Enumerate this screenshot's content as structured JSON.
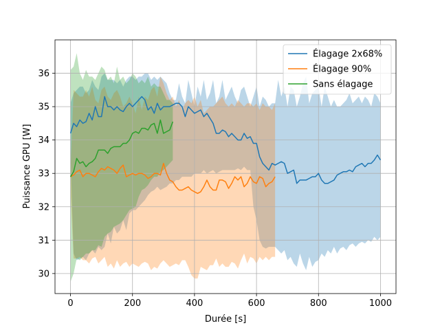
{
  "chart_data": {
    "type": "line",
    "title": "",
    "xlabel": "Durée [s]",
    "ylabel": "Puissance GPU [W]",
    "xlim": [
      -50,
      1050
    ],
    "ylim": [
      29.4,
      37.0
    ],
    "xticks": [
      0,
      200,
      400,
      600,
      800,
      1000
    ],
    "xtick_labels": [
      "0",
      "200",
      "400",
      "600",
      "800",
      "1000"
    ],
    "yticks": [
      30,
      31,
      32,
      33,
      34,
      35,
      36
    ],
    "ytick_labels": [
      "30",
      "31",
      "32",
      "33",
      "34",
      "35",
      "36"
    ],
    "grid": true,
    "legend_position": "top-right",
    "series": [
      {
        "name": "Élagage 2x68%",
        "color": "#1f77b4",
        "x": [
          0,
          10,
          20,
          30,
          40,
          50,
          60,
          70,
          80,
          90,
          100,
          110,
          120,
          130,
          140,
          150,
          160,
          170,
          180,
          190,
          200,
          210,
          220,
          230,
          240,
          250,
          260,
          270,
          280,
          290,
          300,
          310,
          320,
          330,
          340,
          350,
          360,
          370,
          380,
          390,
          400,
          410,
          420,
          430,
          440,
          450,
          460,
          470,
          480,
          490,
          500,
          510,
          520,
          530,
          540,
          550,
          560,
          570,
          580,
          590,
          600,
          610,
          620,
          630,
          640,
          650,
          660,
          670,
          680,
          690,
          700,
          710,
          720,
          730,
          740,
          750,
          760,
          770,
          780,
          790,
          800,
          810,
          820,
          830,
          840,
          850,
          860,
          870,
          880,
          890,
          900,
          910,
          920,
          930,
          940,
          950,
          960,
          970,
          980,
          990,
          1000
        ],
        "y": [
          34.2,
          34.5,
          34.4,
          34.6,
          34.5,
          34.55,
          34.8,
          34.6,
          35.0,
          34.7,
          34.7,
          35.3,
          35.0,
          35.0,
          34.9,
          35.0,
          34.9,
          34.85,
          35.0,
          35.1,
          35.0,
          35.1,
          35.2,
          35.3,
          35.2,
          34.9,
          35.0,
          34.8,
          35.1,
          34.9,
          35.0,
          35.0,
          35.0,
          35.05,
          35.1,
          35.1,
          35.0,
          34.7,
          35.0,
          34.9,
          34.8,
          34.85,
          34.9,
          34.7,
          34.8,
          34.65,
          34.5,
          34.2,
          34.2,
          34.3,
          34.25,
          34.1,
          34.2,
          34.1,
          34.0,
          34.0,
          34.2,
          34.05,
          34.1,
          33.9,
          33.9,
          33.5,
          33.3,
          33.2,
          33.1,
          33.3,
          33.25,
          33.3,
          33.35,
          33.3,
          33.0,
          33.05,
          33.1,
          32.7,
          32.8,
          32.8,
          32.8,
          32.85,
          32.9,
          32.9,
          33.0,
          32.8,
          32.7,
          32.7,
          32.75,
          32.8,
          32.95,
          33.0,
          33.05,
          33.05,
          33.1,
          33.05,
          33.2,
          33.25,
          33.3,
          33.2,
          33.3,
          33.3,
          33.4,
          33.55,
          33.4
        ],
        "band_low": [
          33.6,
          30.6,
          30.4,
          30.45,
          30.5,
          30.4,
          30.6,
          30.7,
          30.6,
          30.8,
          30.7,
          30.8,
          31.2,
          30.9,
          31.4,
          31.2,
          31.3,
          31.6,
          31.3,
          31.8,
          31.9,
          31.9,
          32.0,
          32.1,
          32.2,
          32.35,
          32.45,
          32.5,
          32.6,
          32.5,
          32.55,
          32.6,
          32.7,
          32.7,
          32.8,
          32.8,
          32.9,
          32.9,
          32.9,
          32.9,
          33.0,
          33.0,
          33.0,
          33.1,
          33.0,
          33.05,
          33.1,
          33.0,
          33.05,
          33.1,
          33.1,
          33.1,
          33.1,
          33.1,
          33.15,
          33.1,
          33.2,
          33.1,
          33.1,
          32.0,
          31.6,
          31.0,
          30.8,
          30.75,
          30.8,
          30.8,
          30.8,
          30.7,
          30.6,
          30.7,
          30.4,
          30.5,
          30.3,
          30.2,
          30.6,
          30.3,
          30.1,
          30.5,
          30.2,
          30.35,
          30.4,
          30.6,
          30.5,
          30.7,
          30.6,
          30.8,
          30.6,
          30.75,
          30.8,
          30.7,
          30.85,
          30.9,
          30.8,
          30.9,
          30.95,
          30.9,
          31.0,
          30.95,
          31.1,
          31.0,
          31.1
        ],
        "band_high": [
          35.1,
          35.4,
          35.5,
          35.6,
          35.6,
          35.4,
          35.5,
          35.8,
          35.6,
          35.5,
          35.9,
          36.0,
          35.8,
          35.8,
          35.8,
          35.7,
          35.8,
          35.6,
          35.8,
          35.9,
          35.9,
          35.8,
          35.9,
          35.9,
          36.0,
          36.0,
          35.8,
          35.9,
          35.8,
          35.9,
          35.8,
          35.7,
          35.4,
          35.2,
          35.2,
          35.7,
          35.3,
          35.1,
          35.8,
          35.4,
          35.0,
          35.6,
          35.3,
          35.8,
          35.2,
          35.4,
          35.8,
          35.1,
          35.3,
          35.8,
          35.2,
          35.4,
          35.6,
          35.3,
          35.1,
          35.5,
          35.6,
          35.3,
          35.0,
          35.3,
          35.6,
          35.0,
          35.3,
          35.2,
          35.0,
          35.1,
          35.1,
          35.8,
          35.3,
          35.6,
          35.0,
          35.6,
          35.5,
          35.0,
          35.3,
          35.7,
          35.9,
          35.1,
          35.4,
          35.5,
          35.6,
          35.0,
          35.6,
          35.3,
          35.0,
          35.2,
          35.0,
          35.0,
          35.1,
          35.2,
          35.4,
          35.1,
          35.2,
          35.3,
          35.1,
          35.3,
          35.2,
          35.0,
          35.4,
          35.3,
          35.1
        ]
      },
      {
        "name": "Élagage 90%",
        "color": "#ff7f0e",
        "x": [
          0,
          10,
          20,
          30,
          40,
          50,
          60,
          70,
          80,
          90,
          100,
          110,
          120,
          130,
          140,
          150,
          160,
          170,
          180,
          190,
          200,
          210,
          220,
          230,
          240,
          250,
          260,
          270,
          280,
          290,
          300,
          310,
          320,
          330,
          340,
          350,
          360,
          370,
          380,
          390,
          400,
          410,
          420,
          430,
          440,
          450,
          460,
          470,
          480,
          490,
          500,
          510,
          520,
          530,
          540,
          550,
          560,
          570,
          580,
          590,
          600,
          610,
          620,
          630,
          640,
          650,
          660
        ],
        "y": [
          32.9,
          32.95,
          33.05,
          33.1,
          32.9,
          33.0,
          33.0,
          32.95,
          32.9,
          33.05,
          33.15,
          33.1,
          33.2,
          33.15,
          33.1,
          33.0,
          33.15,
          33.25,
          32.9,
          32.95,
          33.0,
          32.95,
          33.0,
          33.0,
          32.95,
          32.85,
          32.9,
          33.0,
          33.0,
          32.95,
          33.3,
          33.0,
          32.8,
          32.75,
          32.6,
          32.5,
          32.5,
          32.55,
          32.6,
          32.5,
          32.45,
          32.4,
          32.45,
          32.6,
          32.8,
          32.6,
          32.5,
          32.5,
          32.8,
          32.8,
          32.75,
          32.55,
          32.7,
          32.9,
          32.8,
          32.9,
          32.6,
          32.7,
          32.9,
          32.75,
          32.7,
          32.9,
          32.85,
          32.6,
          32.7,
          32.75,
          32.9
        ],
        "band_low": [
          32.5,
          30.45,
          30.45,
          30.5,
          30.4,
          30.4,
          30.3,
          30.45,
          30.5,
          30.3,
          30.4,
          30.5,
          30.2,
          30.3,
          30.15,
          30.4,
          30.2,
          30.3,
          30.35,
          30.2,
          30.3,
          30.25,
          30.2,
          30.3,
          30.35,
          30.3,
          30.1,
          30.2,
          30.15,
          30.3,
          30.4,
          30.3,
          30.2,
          30.25,
          30.3,
          30.25,
          30.4,
          30.4,
          30.2,
          29.95,
          29.85,
          29.85,
          30.2,
          30.15,
          30.1,
          30.25,
          30.25,
          30.45,
          30.2,
          30.3,
          30.2,
          30.2,
          30.35,
          30.3,
          30.15,
          30.4,
          30.6,
          30.3,
          30.5,
          30.45,
          30.3,
          30.5,
          30.4,
          30.5,
          30.4,
          30.5,
          30.5
        ],
        "band_high": [
          33.1,
          35.5,
          35.4,
          35.3,
          35.3,
          35.5,
          35.3,
          35.6,
          35.2,
          35.1,
          35.5,
          35.6,
          35.3,
          35.2,
          35.4,
          35.5,
          35.3,
          35.0,
          35.1,
          35.3,
          35.1,
          34.8,
          35.3,
          34.9,
          35.3,
          35.2,
          35.5,
          35.6,
          35.3,
          35.9,
          35.7,
          35.4,
          35.2,
          35.3,
          35.0,
          35.2,
          34.9,
          35.1,
          35.2,
          35.1,
          35.3,
          35.0,
          35.2,
          34.8,
          34.9,
          35.0,
          35.0,
          35.1,
          35.2,
          35.3,
          35.1,
          35.0,
          35.1,
          35.0,
          35.2,
          35.1,
          35.0,
          35.1,
          35.1,
          35.0,
          35.1,
          34.9,
          35.1,
          35.0,
          35.0,
          34.9,
          35.1
        ]
      },
      {
        "name": "Sans élagage",
        "color": "#2ca02c",
        "x": [
          0,
          10,
          20,
          30,
          40,
          50,
          60,
          70,
          80,
          90,
          100,
          110,
          120,
          130,
          140,
          150,
          160,
          170,
          180,
          190,
          200,
          210,
          220,
          230,
          240,
          250,
          260,
          270,
          280,
          290,
          300,
          310,
          320,
          330
        ],
        "y": [
          32.9,
          33.05,
          33.45,
          33.3,
          33.35,
          33.2,
          33.3,
          33.35,
          33.45,
          33.7,
          33.7,
          33.7,
          33.6,
          33.75,
          33.8,
          33.8,
          33.8,
          33.9,
          33.9,
          34.0,
          34.2,
          34.25,
          34.2,
          34.35,
          34.35,
          34.3,
          34.45,
          34.5,
          34.2,
          34.6,
          34.2,
          34.25,
          34.3,
          34.55
        ],
        "band_low": [
          29.75,
          30.0,
          30.45,
          30.4,
          30.5,
          30.6,
          30.6,
          30.7,
          30.7,
          30.85,
          30.8,
          31.1,
          31.2,
          31.25,
          31.4,
          31.45,
          31.5,
          31.6,
          31.75,
          31.9,
          31.95,
          32.0,
          32.3,
          32.5,
          32.55,
          32.65,
          32.8,
          32.9,
          32.9,
          33.05,
          33.1,
          33.2,
          33.3,
          33.4
        ],
        "band_high": [
          36.1,
          36.2,
          36.6,
          36.0,
          35.8,
          36.1,
          35.9,
          35.9,
          35.8,
          36.0,
          36.2,
          36.1,
          35.8,
          35.9,
          35.7,
          36.2,
          35.8,
          35.9,
          35.7,
          35.8,
          36.0,
          35.9,
          35.7,
          35.8,
          35.7,
          35.9,
          35.6,
          35.7,
          35.6,
          35.6,
          35.4,
          35.2,
          35.2,
          35.1
        ]
      }
    ]
  }
}
